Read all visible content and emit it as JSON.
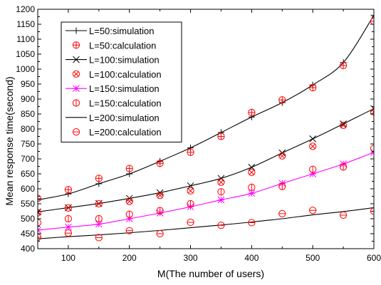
{
  "chart_data": {
    "type": "line",
    "title": "",
    "xlabel": "M(The number of users)",
    "ylabel": "Mean response time(second)",
    "xlim": [
      50,
      600
    ],
    "ylim": [
      400,
      1200
    ],
    "xticks": [
      100,
      200,
      300,
      400,
      500,
      600
    ],
    "yticks": [
      400,
      450,
      500,
      550,
      600,
      650,
      700,
      750,
      800,
      850,
      900,
      950,
      1000,
      1050,
      1100,
      1150,
      1200
    ],
    "grid": false,
    "legend_position": "top-left",
    "series": [
      {
        "name": "L=50:simulation",
        "kind": "simulation",
        "marker": "plus",
        "color": "#000000",
        "x": [
          50,
          100,
          150,
          200,
          250,
          300,
          350,
          400,
          450,
          500,
          550,
          600
        ],
        "y": [
          563,
          583,
          617,
          650,
          692,
          737,
          788,
          840,
          888,
          947,
          1022,
          1180
        ]
      },
      {
        "name": "L=50:calculation",
        "kind": "calculation",
        "marker": "circle-plus",
        "color": "#ff0000",
        "x": [
          50,
          100,
          150,
          200,
          250,
          300,
          350,
          400,
          450,
          500,
          550,
          600
        ],
        "y": [
          568,
          597,
          635,
          668,
          685,
          722,
          775,
          855,
          897,
          938,
          1012,
          1160
        ]
      },
      {
        "name": "L=100:simulation",
        "kind": "simulation",
        "marker": "x",
        "color": "#000000",
        "x": [
          50,
          100,
          150,
          200,
          250,
          300,
          350,
          400,
          450,
          500,
          550,
          600
        ],
        "y": [
          523,
          537,
          551,
          568,
          587,
          610,
          635,
          672,
          720,
          767,
          817,
          868
        ]
      },
      {
        "name": "L=100:calculation",
        "kind": "calculation",
        "marker": "circle-x",
        "color": "#ff0000",
        "x": [
          50,
          100,
          150,
          200,
          250,
          300,
          350,
          400,
          450,
          500,
          550,
          600
        ],
        "y": [
          520,
          536,
          550,
          558,
          578,
          593,
          622,
          655,
          710,
          742,
          812,
          857
        ]
      },
      {
        "name": "L=150:simulation",
        "kind": "simulation",
        "marker": "star",
        "color": "#ff00ff",
        "x": [
          50,
          100,
          150,
          200,
          250,
          300,
          350,
          400,
          450,
          500,
          550,
          600
        ],
        "y": [
          462,
          472,
          482,
          500,
          519,
          540,
          563,
          585,
          618,
          650,
          683,
          722
        ]
      },
      {
        "name": "L=150:calculation",
        "kind": "calculation",
        "marker": "circle-vline",
        "color": "#ff0000",
        "x": [
          50,
          100,
          150,
          200,
          250,
          300,
          350,
          400,
          450,
          500,
          550,
          600
        ],
        "y": [
          487,
          500,
          500,
          515,
          527,
          550,
          590,
          605,
          608,
          665,
          673,
          735
        ]
      },
      {
        "name": "L=200:simulation",
        "kind": "simulation",
        "marker": "none",
        "color": "#000000",
        "x": [
          50,
          100,
          150,
          200,
          250,
          300,
          350,
          400,
          450,
          500,
          550,
          600
        ],
        "y": [
          433,
          440,
          446,
          453,
          461,
          470,
          479,
          489,
          500,
          513,
          524,
          537
        ]
      },
      {
        "name": "L=200:calculation",
        "kind": "calculation",
        "marker": "circle-hline",
        "color": "#ff0000",
        "x": [
          50,
          100,
          150,
          200,
          250,
          300,
          350,
          400,
          450,
          500,
          550,
          600
        ],
        "y": [
          438,
          452,
          437,
          460,
          450,
          488,
          478,
          487,
          517,
          528,
          512,
          525
        ]
      }
    ]
  }
}
